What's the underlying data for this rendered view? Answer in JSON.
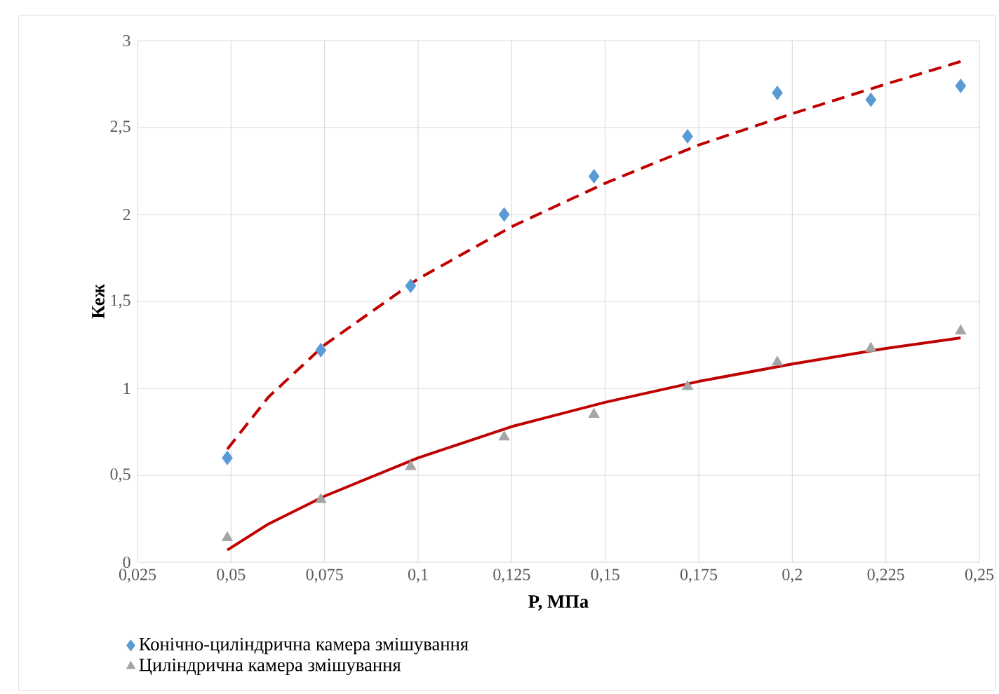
{
  "chart_data": {
    "type": "scatter",
    "xlabel": "P, МПа",
    "ylabel": "Кеж",
    "xlim": [
      0.025,
      0.25
    ],
    "ylim": [
      0,
      3
    ],
    "xticks": [
      {
        "value": 0.025,
        "label": "0,025"
      },
      {
        "value": 0.05,
        "label": "0,05"
      },
      {
        "value": 0.075,
        "label": "0,075"
      },
      {
        "value": 0.1,
        "label": "0,1"
      },
      {
        "value": 0.125,
        "label": "0,125"
      },
      {
        "value": 0.15,
        "label": "0,15"
      },
      {
        "value": 0.175,
        "label": "0,175"
      },
      {
        "value": 0.2,
        "label": "0,2"
      },
      {
        "value": 0.225,
        "label": "0,225"
      },
      {
        "value": 0.25,
        "label": "0,25"
      }
    ],
    "yticks": [
      0,
      {
        "value": 0.5,
        "label": "0,5"
      },
      1,
      {
        "value": 1.5,
        "label": "1,5"
      },
      2,
      {
        "value": 2.5,
        "label": "2,5"
      },
      3
    ],
    "grid": true,
    "legend": "bottom",
    "series": [
      {
        "name": "Конічно-циліндрична камера змішування",
        "type": "scatter",
        "marker": "diamond",
        "color": "#5b9bd5",
        "x": [
          0.049,
          0.074,
          0.098,
          0.123,
          0.147,
          0.172,
          0.196,
          0.221,
          0.245
        ],
        "values": [
          0.6,
          1.22,
          1.59,
          2.0,
          2.22,
          2.45,
          2.7,
          2.66,
          2.74
        ]
      },
      {
        "name": "Циліндрична камера змішування",
        "type": "scatter",
        "marker": "triangle",
        "color": "#a5a5a5",
        "x": [
          0.049,
          0.074,
          0.098,
          0.123,
          0.147,
          0.172,
          0.196,
          0.221,
          0.245
        ],
        "values": [
          0.14,
          0.36,
          0.55,
          0.72,
          0.85,
          1.01,
          1.15,
          1.23,
          1.33
        ]
      },
      {
        "type": "line",
        "line_style": "dashed",
        "color": "#c00000",
        "x": [
          0.049,
          0.06,
          0.075,
          0.1,
          0.125,
          0.15,
          0.175,
          0.2,
          0.225,
          0.245
        ],
        "values": [
          0.65,
          0.95,
          1.25,
          1.63,
          1.93,
          2.18,
          2.4,
          2.58,
          2.75,
          2.88
        ]
      },
      {
        "type": "line",
        "line_style": "solid",
        "color": "#c00000",
        "x": [
          0.049,
          0.06,
          0.075,
          0.1,
          0.125,
          0.15,
          0.175,
          0.2,
          0.225,
          0.245
        ],
        "values": [
          0.07,
          0.22,
          0.38,
          0.6,
          0.78,
          0.92,
          1.04,
          1.14,
          1.23,
          1.29
        ]
      }
    ]
  }
}
